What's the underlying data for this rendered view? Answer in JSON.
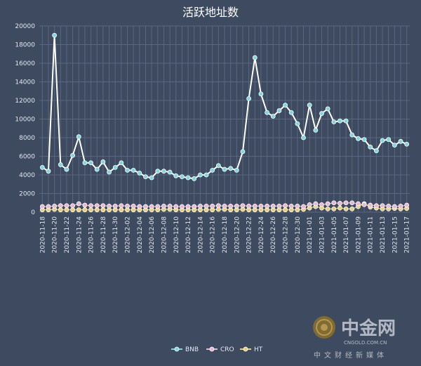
{
  "chart_data": {
    "type": "line",
    "title": "活跃地址数",
    "ylim": [
      0,
      20000
    ],
    "yticks": [
      0,
      2000,
      4000,
      6000,
      8000,
      10000,
      12000,
      14000,
      16000,
      18000,
      20000
    ],
    "grid": true,
    "legend_position": "bottom",
    "x": [
      "2020-11-18",
      "2020-11-19",
      "2020-11-20",
      "2020-11-21",
      "2020-11-22",
      "2020-11-23",
      "2020-11-24",
      "2020-11-25",
      "2020-11-26",
      "2020-11-27",
      "2020-11-28",
      "2020-11-29",
      "2020-11-30",
      "2020-12-01",
      "2020-12-02",
      "2020-12-03",
      "2020-12-04",
      "2020-12-05",
      "2020-12-06",
      "2020-12-07",
      "2020-12-08",
      "2020-12-09",
      "2020-12-10",
      "2020-12-11",
      "2020-12-12",
      "2020-12-13",
      "2020-12-14",
      "2020-12-15",
      "2020-12-16",
      "2020-12-17",
      "2020-12-18",
      "2020-12-19",
      "2020-12-20",
      "2020-12-21",
      "2020-12-22",
      "2020-12-23",
      "2020-12-24",
      "2020-12-25",
      "2020-12-26",
      "2020-12-27",
      "2020-12-28",
      "2020-12-29",
      "2020-12-30",
      "2020-12-31",
      "2021-01-01",
      "2021-01-02",
      "2021-01-03",
      "2021-01-04",
      "2021-01-05",
      "2021-01-06",
      "2021-01-07",
      "2021-01-08",
      "2021-01-09",
      "2021-01-10",
      "2021-01-11",
      "2021-01-12",
      "2021-01-13",
      "2021-01-14",
      "2021-01-15",
      "2021-01-16",
      "2021-01-17"
    ],
    "x_tick_labels": [
      "2020-11-18",
      "2020-11-20",
      "2020-11-22",
      "2020-11-24",
      "2020-11-26",
      "2020-11-28",
      "2020-11-30",
      "2020-12-02",
      "2020-12-04",
      "2020-12-06",
      "2020-12-08",
      "2020-12-10",
      "2020-12-12",
      "2020-12-14",
      "2020-12-16",
      "2020-12-18",
      "2020-12-20",
      "2020-12-22",
      "2020-12-24",
      "2020-12-26",
      "2020-12-28",
      "2020-12-30",
      "2021-01-01",
      "2021-01-03",
      "2021-01-05",
      "2021-01-07",
      "2021-01-09",
      "2021-01-11",
      "2021-01-13",
      "2021-01-15",
      "2021-01-17"
    ],
    "series": [
      {
        "name": "BNB",
        "color": "#7fd8e0",
        "values": [
          4800,
          4400,
          19000,
          5100,
          4600,
          6100,
          8100,
          5300,
          5300,
          4600,
          5400,
          4300,
          4800,
          5300,
          4500,
          4500,
          4200,
          3800,
          3700,
          4400,
          4400,
          4300,
          3900,
          3800,
          3700,
          3600,
          4000,
          4000,
          4500,
          5000,
          4600,
          4700,
          4500,
          6500,
          12200,
          16600,
          12700,
          10700,
          10300,
          10900,
          11500,
          10700,
          9500,
          8000,
          11500,
          8800,
          10600,
          11100,
          9700,
          9800,
          9800,
          8300,
          7900,
          7800,
          7000,
          6600,
          7700,
          7800,
          7200,
          7600,
          7300
        ]
      },
      {
        "name": "CRO",
        "color": "#e8b8d0",
        "values": [
          600,
          600,
          650,
          700,
          700,
          700,
          900,
          750,
          700,
          700,
          700,
          650,
          650,
          700,
          650,
          650,
          600,
          600,
          600,
          600,
          650,
          650,
          600,
          600,
          600,
          600,
          650,
          650,
          650,
          700,
          650,
          650,
          650,
          700,
          650,
          650,
          650,
          650,
          650,
          650,
          700,
          650,
          650,
          600,
          800,
          900,
          800,
          900,
          1000,
          950,
          1000,
          1000,
          900,
          800,
          750,
          700,
          700,
          650,
          600,
          650,
          750
        ]
      },
      {
        "name": "HT",
        "color": "#e8d074",
        "values": [
          250,
          250,
          300,
          250,
          250,
          250,
          250,
          250,
          250,
          250,
          250,
          250,
          250,
          250,
          250,
          250,
          250,
          250,
          250,
          250,
          300,
          300,
          250,
          250,
          250,
          250,
          250,
          250,
          250,
          300,
          300,
          250,
          250,
          300,
          250,
          250,
          250,
          250,
          250,
          250,
          250,
          250,
          250,
          300,
          450,
          600,
          450,
          350,
          350,
          450,
          350,
          350,
          600,
          900,
          550,
          450,
          350,
          350,
          400,
          350,
          400
        ]
      }
    ]
  },
  "watermark": {
    "brand": "中金网",
    "domain": "CNGOLD.COM.CN",
    "slogan": "中文财经新媒体"
  }
}
